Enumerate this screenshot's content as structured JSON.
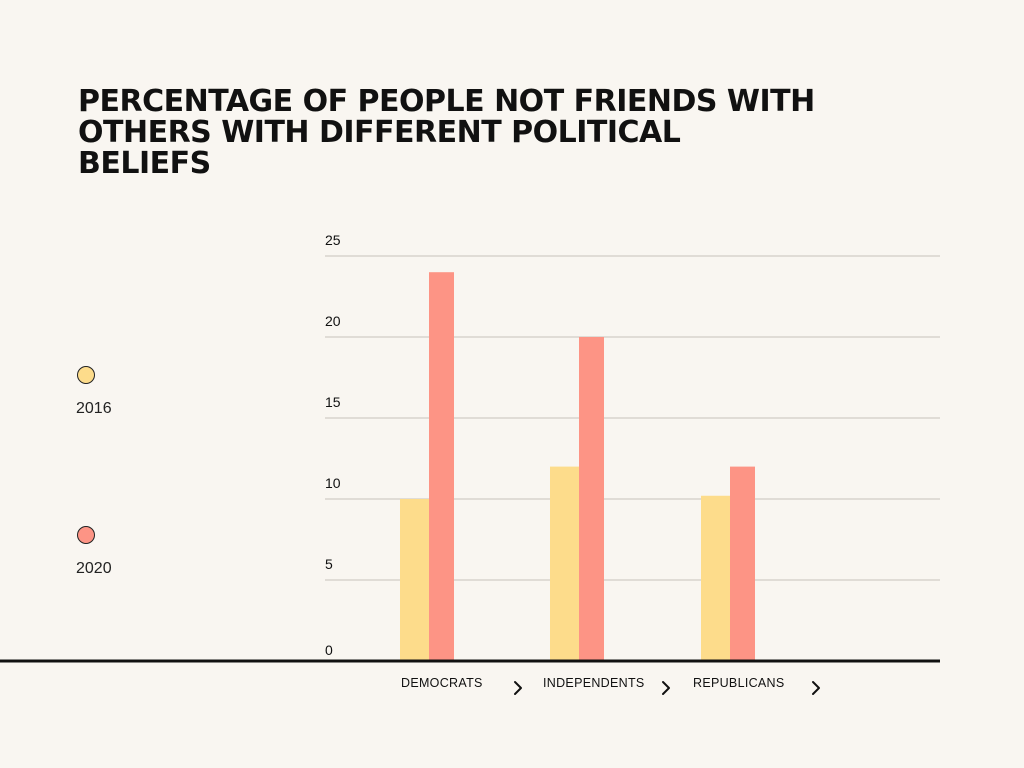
{
  "colors": {
    "background": "#f9f6f1",
    "series_2016": "#fddc8b",
    "series_2020": "#fd9485",
    "gridline": "#c8c3bc",
    "axis": "#111111",
    "text": "#111111"
  },
  "chart_data": {
    "type": "bar",
    "title": "PERCENTAGE OF PEOPLE NOT FRIENDS WITH OTHERS WITH DIFFERENT POLITICAL BELIEFS",
    "xlabel": "",
    "ylabel": "",
    "categories": [
      "DEMOCRATS",
      "INDEPENDENTS",
      "REPUBLICANS"
    ],
    "series": [
      {
        "name": "2016",
        "values": [
          10,
          12,
          10.2
        ]
      },
      {
        "name": "2020",
        "values": [
          24,
          20,
          12
        ]
      }
    ],
    "ylim": [
      0,
      25
    ],
    "yticks": [
      "0",
      "5",
      "10",
      "15",
      "20",
      "25"
    ],
    "grid": true,
    "legend": "left",
    "category_marker_icon": "chevron-right-icon"
  }
}
